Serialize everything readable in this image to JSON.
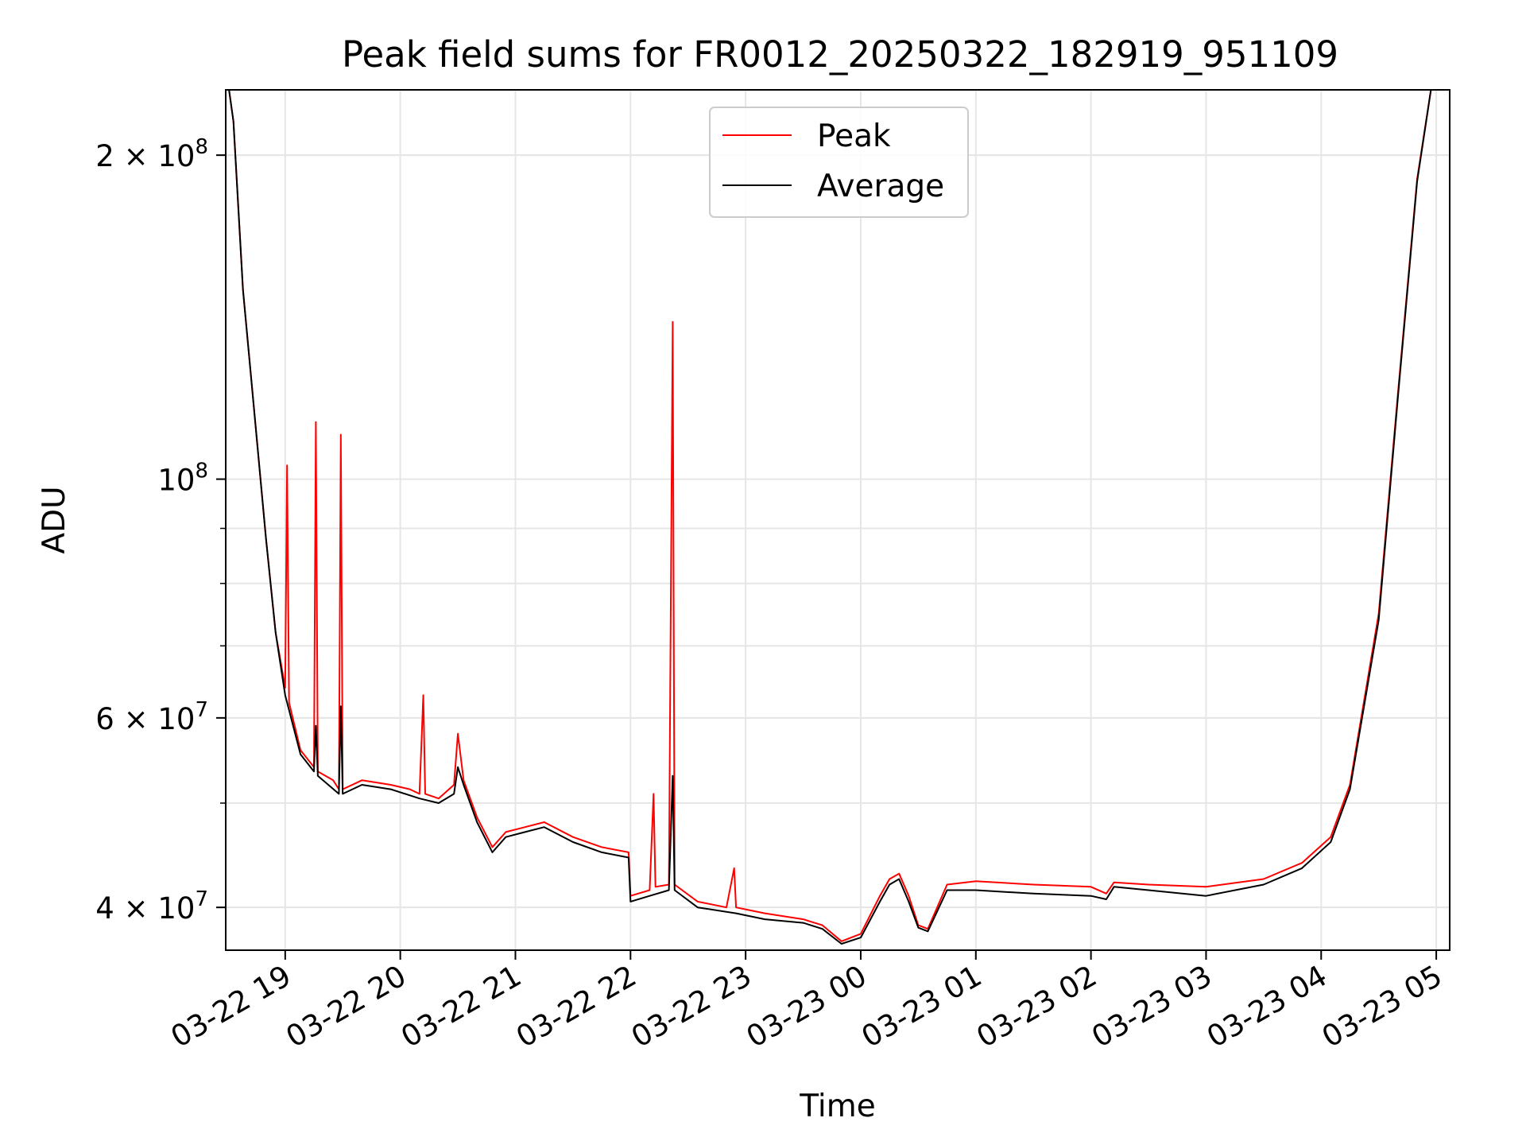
{
  "chart_data": {
    "type": "line",
    "title": "Peak field sums for FR0012_20250322_182919_951109",
    "xlabel": "Time",
    "ylabel": "ADU",
    "yscale": "log",
    "ylim": [
      36500000,
      230000000
    ],
    "xlim": [
      "2025-03-22 18:29",
      "2025-03-23 05:07"
    ],
    "x_ticks": [
      "03-22 19",
      "03-22 20",
      "03-22 21",
      "03-22 22",
      "03-22 23",
      "03-23 00",
      "03-23 01",
      "03-23 02",
      "03-23 03",
      "03-23 04",
      "03-23 05"
    ],
    "y_ticks": [
      {
        "value": 40000000,
        "mantissa": "4",
        "exp": "7",
        "label": "4 × 10^7"
      },
      {
        "value": 60000000,
        "mantissa": "6",
        "exp": "7",
        "label": "6 × 10^7"
      },
      {
        "value": 100000000,
        "mantissa": "",
        "exp": "8",
        "label": "10^8"
      },
      {
        "value": 200000000,
        "mantissa": "2",
        "exp": "8",
        "label": "2 × 10^8"
      }
    ],
    "grid": true,
    "legend_position": "upper-center",
    "series": [
      {
        "name": "Peak",
        "color": "#ff0000",
        "points": [
          [
            "2025-03-22 18:30",
            235000000
          ],
          [
            "2025-03-22 18:33",
            215000000
          ],
          [
            "2025-03-22 18:38",
            150000000
          ],
          [
            "2025-03-22 18:45",
            110000000
          ],
          [
            "2025-03-22 18:50",
            88000000
          ],
          [
            "2025-03-22 18:55",
            72000000
          ],
          [
            "2025-03-22 19:00",
            64000000
          ],
          [
            "2025-03-22 19:01",
            103000000
          ],
          [
            "2025-03-22 19:02",
            62000000
          ],
          [
            "2025-03-22 19:08",
            56000000
          ],
          [
            "2025-03-22 19:15",
            54000000
          ],
          [
            "2025-03-22 19:16",
            113000000
          ],
          [
            "2025-03-22 19:17",
            53500000
          ],
          [
            "2025-03-22 19:25",
            52500000
          ],
          [
            "2025-03-22 19:28",
            51500000
          ],
          [
            "2025-03-22 19:29",
            110000000
          ],
          [
            "2025-03-22 19:30",
            51500000
          ],
          [
            "2025-03-22 19:40",
            52500000
          ],
          [
            "2025-03-22 19:55",
            52000000
          ],
          [
            "2025-03-22 20:05",
            51500000
          ],
          [
            "2025-03-22 20:10",
            51000000
          ],
          [
            "2025-03-22 20:12",
            63000000
          ],
          [
            "2025-03-22 20:13",
            51000000
          ],
          [
            "2025-03-22 20:20",
            50500000
          ],
          [
            "2025-03-22 20:28",
            52000000
          ],
          [
            "2025-03-22 20:30",
            58000000
          ],
          [
            "2025-03-22 20:33",
            52500000
          ],
          [
            "2025-03-22 20:40",
            48500000
          ],
          [
            "2025-03-22 20:48",
            45500000
          ],
          [
            "2025-03-22 20:55",
            47000000
          ],
          [
            "2025-03-22 21:05",
            47500000
          ],
          [
            "2025-03-22 21:15",
            48000000
          ],
          [
            "2025-03-22 21:30",
            46500000
          ],
          [
            "2025-03-22 21:45",
            45500000
          ],
          [
            "2025-03-22 21:59",
            45000000
          ],
          [
            "2025-03-22 22:00",
            41000000
          ],
          [
            "2025-03-22 22:10",
            41500000
          ],
          [
            "2025-03-22 22:12",
            51000000
          ],
          [
            "2025-03-22 22:13",
            41800000
          ],
          [
            "2025-03-22 22:20",
            42000000
          ],
          [
            "2025-03-22 22:22",
            140000000
          ],
          [
            "2025-03-22 22:23",
            42000000
          ],
          [
            "2025-03-22 22:35",
            40500000
          ],
          [
            "2025-03-22 22:50",
            40000000
          ],
          [
            "2025-03-22 22:54",
            43500000
          ],
          [
            "2025-03-22 22:55",
            40000000
          ],
          [
            "2025-03-22 23:10",
            39500000
          ],
          [
            "2025-03-22 23:30",
            39000000
          ],
          [
            "2025-03-22 23:40",
            38500000
          ],
          [
            "2025-03-22 23:50",
            37200000
          ],
          [
            "2025-03-23 00:00",
            37800000
          ],
          [
            "2025-03-23 00:10",
            41000000
          ],
          [
            "2025-03-23 00:15",
            42500000
          ],
          [
            "2025-03-23 00:20",
            43000000
          ],
          [
            "2025-03-23 00:25",
            41000000
          ],
          [
            "2025-03-23 00:30",
            38500000
          ],
          [
            "2025-03-23 00:35",
            38200000
          ],
          [
            "2025-03-23 00:45",
            42000000
          ],
          [
            "2025-03-23 01:00",
            42300000
          ],
          [
            "2025-03-23 01:30",
            42000000
          ],
          [
            "2025-03-23 02:00",
            41800000
          ],
          [
            "2025-03-23 02:08",
            41200000
          ],
          [
            "2025-03-23 02:12",
            42200000
          ],
          [
            "2025-03-23 02:30",
            42000000
          ],
          [
            "2025-03-23 03:00",
            41800000
          ],
          [
            "2025-03-23 03:30",
            42500000
          ],
          [
            "2025-03-23 03:50",
            44000000
          ],
          [
            "2025-03-23 04:05",
            46500000
          ],
          [
            "2025-03-23 04:15",
            52000000
          ],
          [
            "2025-03-23 04:30",
            75000000
          ],
          [
            "2025-03-23 04:40",
            120000000
          ],
          [
            "2025-03-23 04:50",
            190000000
          ],
          [
            "2025-03-23 04:58",
            235000000
          ]
        ]
      },
      {
        "name": "Average",
        "color": "#000000",
        "points": [
          [
            "2025-03-22 18:30",
            235000000
          ],
          [
            "2025-03-22 18:33",
            215000000
          ],
          [
            "2025-03-22 18:38",
            150000000
          ],
          [
            "2025-03-22 18:45",
            110000000
          ],
          [
            "2025-03-22 18:50",
            88000000
          ],
          [
            "2025-03-22 18:55",
            72000000
          ],
          [
            "2025-03-22 19:00",
            63000000
          ],
          [
            "2025-03-22 19:08",
            55500000
          ],
          [
            "2025-03-22 19:15",
            53500000
          ],
          [
            "2025-03-22 19:16",
            59000000
          ],
          [
            "2025-03-22 19:17",
            53000000
          ],
          [
            "2025-03-22 19:28",
            51000000
          ],
          [
            "2025-03-22 19:29",
            61500000
          ],
          [
            "2025-03-22 19:30",
            51000000
          ],
          [
            "2025-03-22 19:40",
            52000000
          ],
          [
            "2025-03-22 19:55",
            51500000
          ],
          [
            "2025-03-22 20:10",
            50500000
          ],
          [
            "2025-03-22 20:20",
            50000000
          ],
          [
            "2025-03-22 20:28",
            51000000
          ],
          [
            "2025-03-22 20:30",
            54000000
          ],
          [
            "2025-03-22 20:33",
            52000000
          ],
          [
            "2025-03-22 20:40",
            48000000
          ],
          [
            "2025-03-22 20:48",
            45000000
          ],
          [
            "2025-03-22 20:55",
            46500000
          ],
          [
            "2025-03-22 21:05",
            47000000
          ],
          [
            "2025-03-22 21:15",
            47500000
          ],
          [
            "2025-03-22 21:30",
            46000000
          ],
          [
            "2025-03-22 21:45",
            45000000
          ],
          [
            "2025-03-22 21:59",
            44500000
          ],
          [
            "2025-03-22 22:00",
            40500000
          ],
          [
            "2025-03-22 22:10",
            41000000
          ],
          [
            "2025-03-22 22:20",
            41500000
          ],
          [
            "2025-03-22 22:22",
            53000000
          ],
          [
            "2025-03-22 22:23",
            41500000
          ],
          [
            "2025-03-22 22:35",
            40000000
          ],
          [
            "2025-03-22 22:55",
            39500000
          ],
          [
            "2025-03-22 23:10",
            39000000
          ],
          [
            "2025-03-22 23:30",
            38700000
          ],
          [
            "2025-03-22 23:40",
            38200000
          ],
          [
            "2025-03-22 23:50",
            37000000
          ],
          [
            "2025-03-23 00:00",
            37500000
          ],
          [
            "2025-03-23 00:10",
            40500000
          ],
          [
            "2025-03-23 00:15",
            42000000
          ],
          [
            "2025-03-23 00:20",
            42500000
          ],
          [
            "2025-03-23 00:25",
            40500000
          ],
          [
            "2025-03-23 00:30",
            38300000
          ],
          [
            "2025-03-23 00:35",
            38000000
          ],
          [
            "2025-03-23 00:45",
            41500000
          ],
          [
            "2025-03-23 01:00",
            41500000
          ],
          [
            "2025-03-23 01:30",
            41200000
          ],
          [
            "2025-03-23 02:00",
            41000000
          ],
          [
            "2025-03-23 02:08",
            40700000
          ],
          [
            "2025-03-23 02:12",
            41800000
          ],
          [
            "2025-03-23 02:30",
            41500000
          ],
          [
            "2025-03-23 03:00",
            41000000
          ],
          [
            "2025-03-23 03:30",
            42000000
          ],
          [
            "2025-03-23 03:50",
            43500000
          ],
          [
            "2025-03-23 04:05",
            46000000
          ],
          [
            "2025-03-23 04:15",
            51500000
          ],
          [
            "2025-03-23 04:30",
            74000000
          ],
          [
            "2025-03-23 04:40",
            119000000
          ],
          [
            "2025-03-23 04:50",
            189000000
          ],
          [
            "2025-03-23 04:58",
            235000000
          ]
        ]
      }
    ]
  }
}
